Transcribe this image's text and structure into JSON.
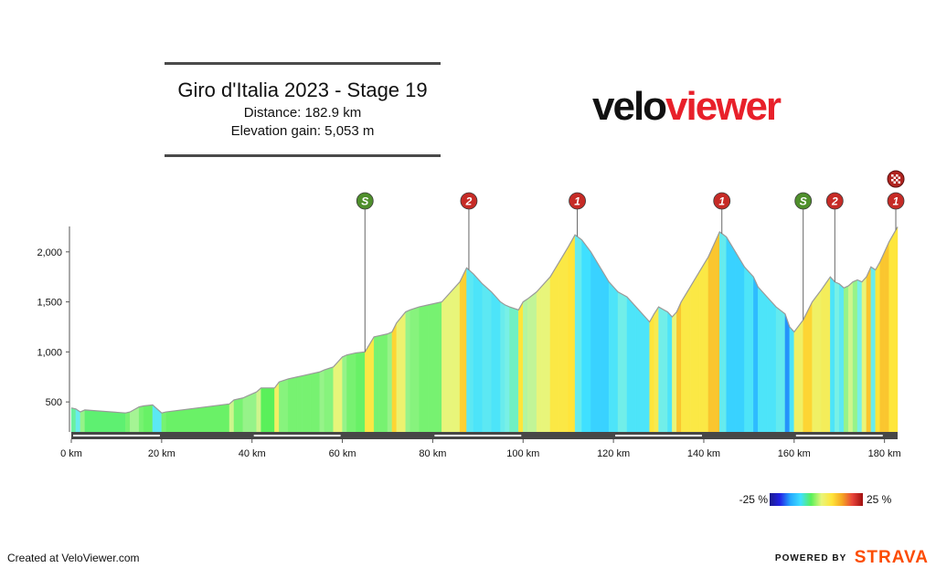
{
  "header": {
    "title": "Giro d'Italia 2023 - Stage 19",
    "distance": "Distance: 182.9 km",
    "elevation_gain": "Elevation gain: 5,053 m"
  },
  "logo": {
    "part1": "velo",
    "part2": "viewer"
  },
  "legend": {
    "min_label": "-25 %",
    "max_label": "25 %"
  },
  "footer": {
    "credit": "Created at VeloViewer.com",
    "powered_by": "POWERED BY",
    "strava": "STRAVA"
  },
  "colors": {
    "profile_outline": "#9a9a9a",
    "baseline": "#474747",
    "climb_marker": "#c62b26",
    "sprint_marker": "#4f8f2c",
    "finish_marker": "#b02420"
  },
  "chart_data": {
    "type": "area",
    "title": "Giro d'Italia 2023 - Stage 19",
    "xlabel": "",
    "ylabel": "",
    "x_unit": "km",
    "xlim": [
      0,
      182.9
    ],
    "ylim": [
      200,
      2400
    ],
    "x_ticks": [
      0,
      20,
      40,
      60,
      80,
      100,
      120,
      140,
      160,
      180
    ],
    "x_tick_labels": [
      "0 km",
      "20 km",
      "40 km",
      "60 km",
      "80 km",
      "100 km",
      "120 km",
      "140 km",
      "160 km",
      "180 km"
    ],
    "y_ticks": [
      500,
      1000,
      1500,
      2000
    ],
    "y_tick_labels": [
      "500",
      "1,000",
      "1,500",
      "2,000"
    ],
    "grid": false,
    "color_scale": {
      "metric": "gradient %",
      "min": -25,
      "max": 25
    },
    "profile": {
      "x": [
        0,
        1,
        2,
        3,
        12,
        13,
        15,
        16,
        18,
        20,
        21,
        35,
        36,
        38,
        39,
        41,
        42,
        43,
        45,
        46,
        48,
        50,
        51,
        53,
        55,
        56,
        58,
        60,
        61,
        63,
        65,
        67,
        68,
        70,
        71,
        72,
        74,
        75,
        77,
        79,
        82,
        84,
        86,
        87.5,
        89,
        91,
        93,
        95,
        96,
        97,
        99,
        100,
        101,
        103,
        104,
        106,
        108,
        110,
        111.5,
        113,
        115,
        117,
        119,
        121,
        123,
        125,
        127,
        128,
        129,
        130,
        132,
        133,
        134,
        135,
        137,
        139,
        141,
        143.5,
        145,
        147,
        149,
        151,
        152,
        154,
        156,
        158,
        159,
        160,
        162,
        164,
        166,
        168,
        169,
        170,
        171,
        172,
        173,
        174,
        175,
        176,
        177,
        178,
        179,
        180,
        181,
        182.9
      ],
      "y": [
        440,
        430,
        400,
        420,
        390,
        400,
        450,
        460,
        470,
        390,
        400,
        480,
        520,
        540,
        560,
        600,
        640,
        640,
        640,
        700,
        730,
        750,
        760,
        780,
        800,
        820,
        850,
        950,
        970,
        990,
        1000,
        1150,
        1160,
        1180,
        1200,
        1290,
        1400,
        1420,
        1450,
        1470,
        1500,
        1600,
        1700,
        1840,
        1780,
        1680,
        1600,
        1500,
        1470,
        1450,
        1420,
        1500,
        1530,
        1600,
        1650,
        1750,
        1900,
        2050,
        2170,
        2120,
        2000,
        1850,
        1700,
        1600,
        1550,
        1450,
        1350,
        1300,
        1380,
        1450,
        1400,
        1350,
        1400,
        1500,
        1650,
        1800,
        1950,
        2200,
        2150,
        2000,
        1850,
        1750,
        1650,
        1550,
        1450,
        1380,
        1250,
        1200,
        1320,
        1500,
        1620,
        1750,
        1700,
        1680,
        1640,
        1660,
        1700,
        1720,
        1700,
        1750,
        1850,
        1820,
        1900,
        2000,
        2100,
        2250
      ]
    },
    "markers": [
      {
        "label": "S",
        "kind": "sprint",
        "x": 65
      },
      {
        "label": "2",
        "kind": "climb",
        "x": 88
      },
      {
        "label": "1",
        "kind": "climb",
        "x": 112
      },
      {
        "label": "1",
        "kind": "climb",
        "x": 144
      },
      {
        "label": "S",
        "kind": "sprint",
        "x": 162
      },
      {
        "label": "2",
        "kind": "climb",
        "x": 169
      },
      {
        "label": "1",
        "kind": "climb",
        "x": 182.5
      },
      {
        "label": "",
        "kind": "finish",
        "x": 182.5
      }
    ]
  }
}
